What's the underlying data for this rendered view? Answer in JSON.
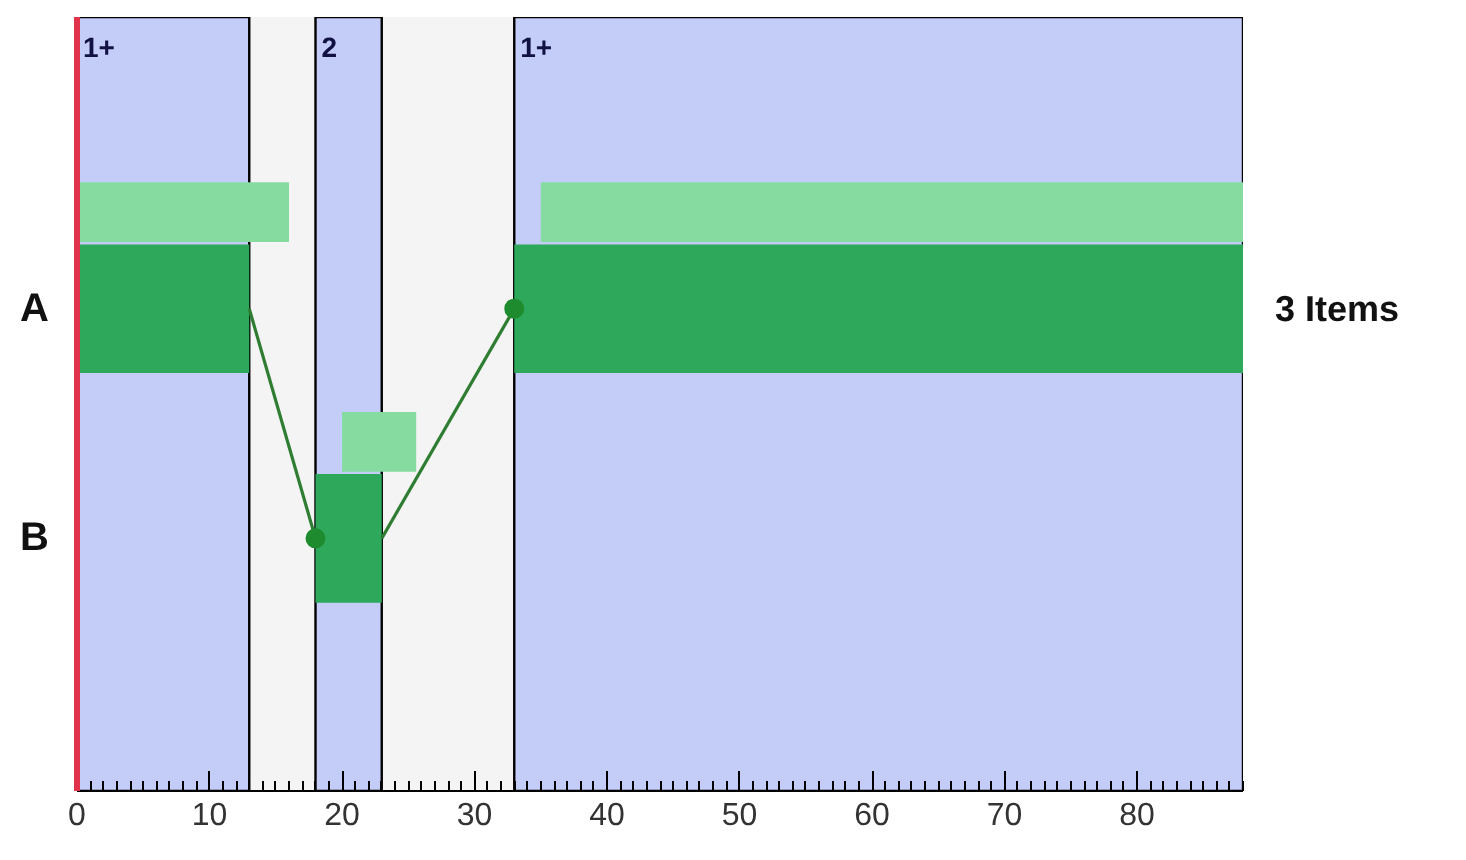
{
  "chart_data": {
    "type": "bar",
    "orientation": "horizontal",
    "categories": [
      "A",
      "B"
    ],
    "series": [
      {
        "color": "#2ea85a",
        "values": [
          13,
          5
        ],
        "base": [
          0,
          18
        ]
      },
      {
        "color": "#2ea85a",
        "values": [
          55,
          null
        ],
        "base": [
          33,
          null
        ]
      },
      {
        "color": "#86dca0",
        "values": [
          16,
          5.6
        ],
        "base": [
          0,
          20
        ]
      },
      {
        "color": "#86dca0",
        "values": [
          53,
          null
        ],
        "base": [
          35,
          null
        ]
      },
      {
        "type": "line",
        "color": "#2e7d32",
        "values": [
          13,
          18
        ]
      },
      {
        "type": "line",
        "color": "#2e7d32",
        "values": [
          33,
          23
        ]
      },
      {
        "type": "scatter",
        "color": "#1e8c2e",
        "values": [
          33,
          18
        ],
        "marker": "circle"
      }
    ],
    "bands": [
      {
        "axis": "x",
        "from": 0,
        "to": 13,
        "label": "1+",
        "color": "#c3cdf7"
      },
      {
        "axis": "x",
        "from": 18,
        "to": 23,
        "label": "2",
        "color": "#c3cdf7"
      },
      {
        "axis": "x",
        "from": 33,
        "to": 88,
        "label": "1+",
        "color": "#c3cdf7"
      }
    ],
    "annotations": [
      "3 Items"
    ],
    "xlim": [
      0,
      88
    ],
    "xticks": [
      0,
      10,
      20,
      30,
      40,
      50,
      60,
      70,
      80
    ],
    "grid": false
  }
}
